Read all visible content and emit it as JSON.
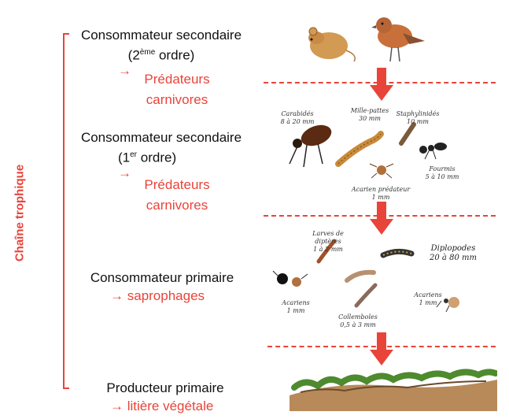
{
  "side_label": "Chaîne trophique",
  "levels": {
    "secondary2": {
      "title": "Consommateur secondaire",
      "order_num": "(2",
      "order_sup": "ème",
      "order_tail": " ordre)",
      "arrow": "→",
      "role_line1": "Prédateurs",
      "role_line2": "carnivores"
    },
    "secondary1": {
      "title": "Consommateur secondaire",
      "order_num": "(1",
      "order_sup": "er",
      "order_tail": " ordre)",
      "arrow": "→",
      "role_line1": "Prédateurs",
      "role_line2": "carnivores"
    },
    "primary": {
      "title": "Consommateur primaire",
      "arrow": "→",
      "role": "saprophages"
    },
    "producer": {
      "title": "Producteur primaire",
      "arrow": "→",
      "role": "litière végétale"
    }
  },
  "species": {
    "carabides": [
      "Carabidés",
      "8 à 20 mm"
    ],
    "millepattes": [
      "Mille-pattes",
      "30 mm"
    ],
    "staphylinides": [
      "Staphylinidés",
      "10 mm"
    ],
    "fourmis": [
      "Fourmis",
      "5 à 10 mm"
    ],
    "acarien_pred": [
      "Acarien prédateur",
      "1 mm"
    ],
    "larves": [
      "Larves de",
      "diptères",
      "1 à 2 mm"
    ],
    "diplopodes": [
      "Diplopodes",
      "20 à 80 mm"
    ],
    "acariens_left": [
      "Acariens",
      "1 mm"
    ],
    "collemboles": [
      "Collemboles",
      "0,5 à 3 mm"
    ],
    "acariens_right": [
      "Acariens",
      "1 mm"
    ]
  },
  "colors": {
    "accent": "#e8443a"
  }
}
